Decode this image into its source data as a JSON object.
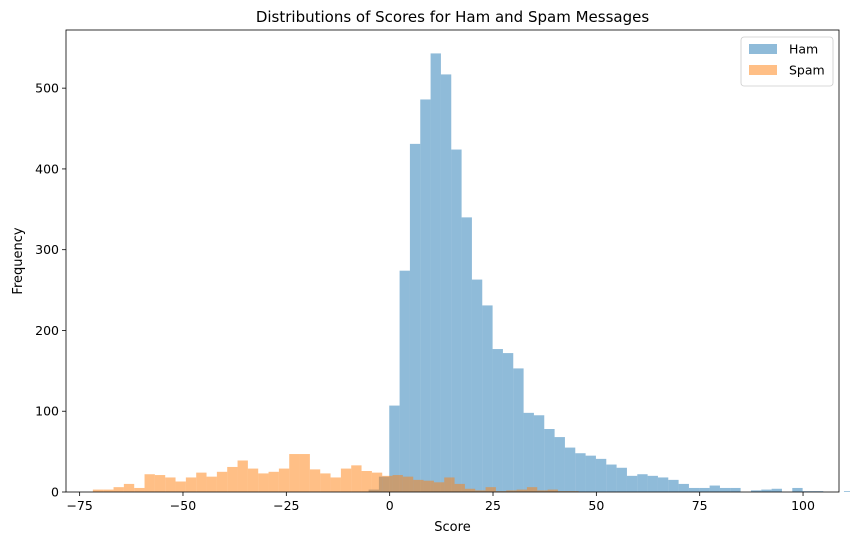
{
  "chart_data": {
    "type": "histogram",
    "title": "Distributions of Scores for Ham and Spam Messages",
    "xlabel": "Score",
    "ylabel": "Frequency",
    "xlim": [
      -78.3,
      108.7
    ],
    "ylim": [
      0,
      572
    ],
    "xticks": [
      -75,
      -50,
      -25,
      0,
      25,
      50,
      75,
      100
    ],
    "xtick_labels": [
      "−75",
      "−50",
      "−25",
      "0",
      "25",
      "50",
      "75",
      "100"
    ],
    "yticks": [
      0,
      100,
      200,
      300,
      400,
      500
    ],
    "ytick_labels": [
      "0",
      "100",
      "200",
      "300",
      "400",
      "500"
    ],
    "legend_position": "top-right",
    "grid": false,
    "series": [
      {
        "name": "Ham",
        "color": "#1f77b4",
        "alpha": 0.5,
        "bin_start": -5.1,
        "bin_width": 2.5,
        "counts": [
          3,
          19,
          107,
          274,
          431,
          486,
          543,
          517,
          424,
          340,
          263,
          231,
          177,
          172,
          153,
          98,
          95,
          78,
          68,
          55,
          48,
          45,
          41,
          34,
          30,
          20,
          22,
          20,
          18,
          15,
          10,
          5,
          5,
          8,
          5,
          5,
          0,
          2,
          3,
          4,
          0,
          5,
          1,
          1,
          0,
          0,
          1,
          0,
          1,
          0,
          2,
          2,
          1
        ]
      },
      {
        "name": "Spam",
        "color": "#ff7f0e",
        "alpha": 0.5,
        "bin_start": -71.8,
        "bin_width": 2.5,
        "counts": [
          3,
          3,
          6,
          10,
          5,
          22,
          21,
          18,
          13,
          18,
          24,
          19,
          25,
          31,
          39,
          29,
          23,
          25,
          29,
          47,
          47,
          28,
          23,
          18,
          29,
          33,
          26,
          24,
          20,
          21,
          19,
          15,
          14,
          12,
          18,
          10,
          4,
          2,
          6,
          1,
          2,
          3,
          6,
          2,
          3,
          1,
          1
        ]
      }
    ]
  }
}
